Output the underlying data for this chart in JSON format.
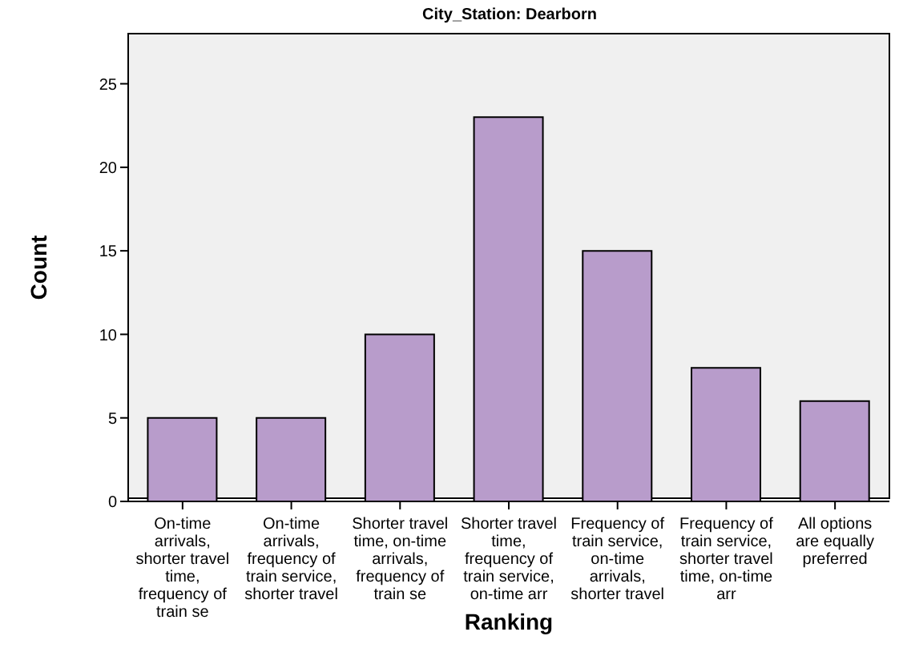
{
  "chart_data": {
    "type": "bar",
    "title": "City_Station: Dearborn",
    "xlabel": "Ranking",
    "ylabel": "Count",
    "categories": [
      "On-time arrivals, shorter travel time, frequency of train se",
      "On-time arrivals, frequency of train service, shorter travel",
      "Shorter travel time, on-time arrivals, frequency of train se",
      "Shorter travel time, frequency of train service, on-time arr",
      "Frequency of train service, on-time arrivals, shorter travel",
      "Frequency of train service, shorter travel time, on-time arr",
      "All options are equally preferred"
    ],
    "values": [
      5,
      5,
      10,
      23,
      15,
      8,
      6
    ],
    "color": "#b89ccb",
    "ylim": [
      0,
      28
    ],
    "yticks": [
      0,
      5,
      10,
      15,
      20,
      25
    ],
    "grid": false,
    "legend": false
  }
}
